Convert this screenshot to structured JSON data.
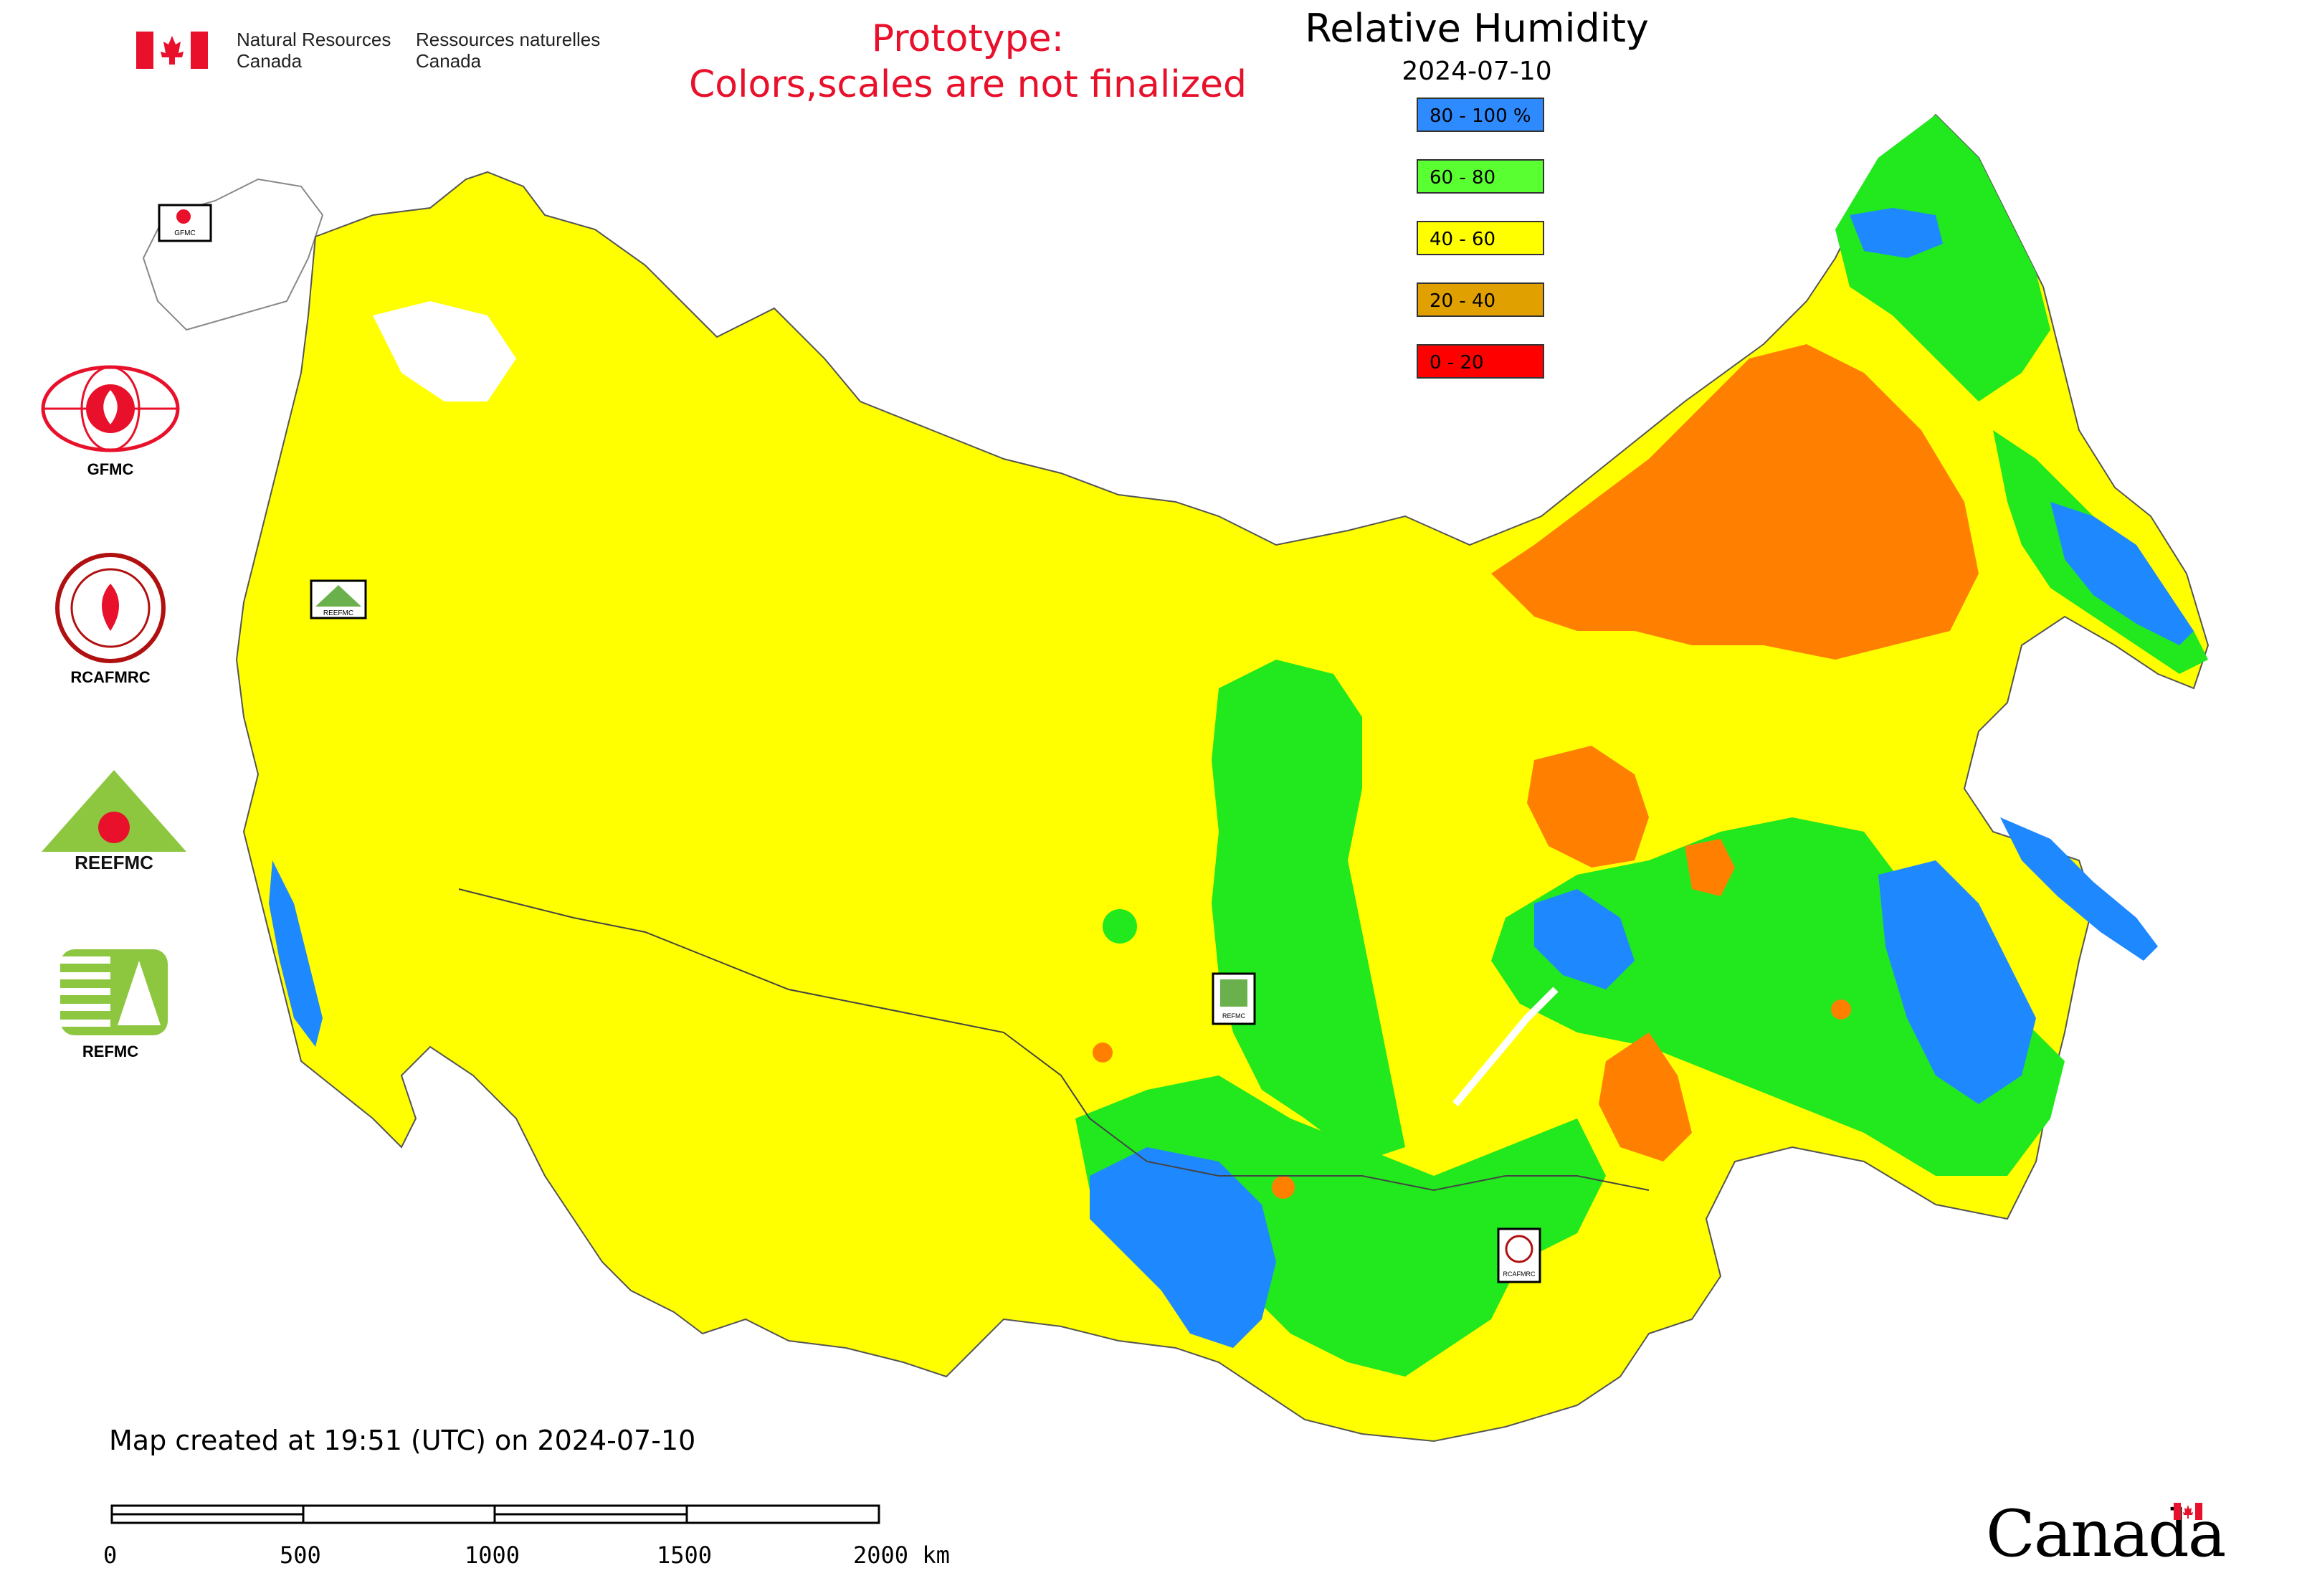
{
  "header": {
    "org_en_line1": "Natural Resources",
    "org_en_line2": "Canada",
    "org_fr_line1": "Ressources naturelles",
    "org_fr_line2": "Canada",
    "prototype_line1": "Prototype:",
    "prototype_line2": "Colors,scales are not finalized"
  },
  "map": {
    "title": "Relative Humidity",
    "date": "2024-07-10"
  },
  "legend": [
    {
      "label": "80 - 100 %",
      "color": "#2e8bff"
    },
    {
      "label": "60 - 80",
      "color": "#5aff32"
    },
    {
      "label": "40 - 60",
      "color": "#ffff00"
    },
    {
      "label": "20 - 40",
      "color": "#e0a000"
    },
    {
      "label": "0 - 20",
      "color": "#ff0000"
    }
  ],
  "colors": {
    "high_blue": "#1e88ff",
    "green": "#22e81e",
    "yellow": "#ffff00",
    "orange": "#ff8000",
    "prototype_red": "#e8102a"
  },
  "logos": [
    {
      "label": "GFMC"
    },
    {
      "label": "RCAFMRC"
    },
    {
      "label": "REEFMC"
    },
    {
      "label": "REFMC"
    }
  ],
  "map_markers": [
    {
      "label": "GFMC"
    },
    {
      "label": "REEFMC"
    },
    {
      "label": "REFMC"
    },
    {
      "label": "RCAFMRC"
    }
  ],
  "footer": {
    "created": "Map created at 19:51 (UTC) on 2024-07-10",
    "scale_labels": [
      "0",
      "500",
      "1000",
      "1500",
      "2000 km"
    ],
    "wordmark": "Canada"
  }
}
